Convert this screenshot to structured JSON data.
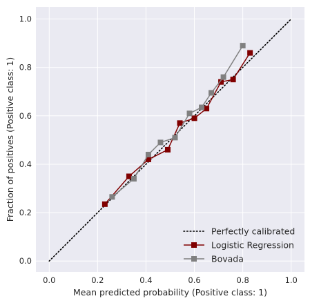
{
  "chart_data": {
    "type": "line",
    "xlabel": "Mean predicted probability (Positive class: 1)",
    "ylabel": "Fraction of positives (Positive class: 1)",
    "xlim": [
      -0.055,
      1.055
    ],
    "ylim": [
      -0.045,
      1.05
    ],
    "xticks": [
      0.0,
      0.2,
      0.4,
      0.6,
      0.8,
      1.0
    ],
    "yticks": [
      0.0,
      0.2,
      0.4,
      0.6,
      0.8,
      1.0
    ],
    "xtick_labels": [
      "0.0",
      "0.2",
      "0.4",
      "0.6",
      "0.8",
      "1.0"
    ],
    "ytick_labels": [
      "0.0",
      "0.2",
      "0.4",
      "0.6",
      "0.8",
      "1.0"
    ],
    "grid": true,
    "legend_position": "bottom-right",
    "background": "#eaeaf2",
    "series": [
      {
        "name": "Perfectly calibrated",
        "style": "dotted",
        "marker": "none",
        "color": "#000000",
        "x": [
          0.0,
          1.0
        ],
        "y": [
          0.0,
          1.0
        ]
      },
      {
        "name": "Logistic Regression",
        "style": "solid",
        "marker": "square",
        "color": "#800000",
        "x": [
          0.23,
          0.33,
          0.41,
          0.49,
          0.54,
          0.6,
          0.65,
          0.71,
          0.76,
          0.83
        ],
        "y": [
          0.235,
          0.35,
          0.42,
          0.46,
          0.57,
          0.59,
          0.63,
          0.74,
          0.75,
          0.86
        ]
      },
      {
        "name": "Bovada",
        "style": "solid",
        "marker": "square",
        "color": "#808080",
        "x": [
          0.26,
          0.35,
          0.41,
          0.46,
          0.52,
          0.58,
          0.63,
          0.67,
          0.72,
          0.8
        ],
        "y": [
          0.265,
          0.34,
          0.44,
          0.49,
          0.51,
          0.61,
          0.635,
          0.695,
          0.76,
          0.89
        ]
      }
    ]
  }
}
